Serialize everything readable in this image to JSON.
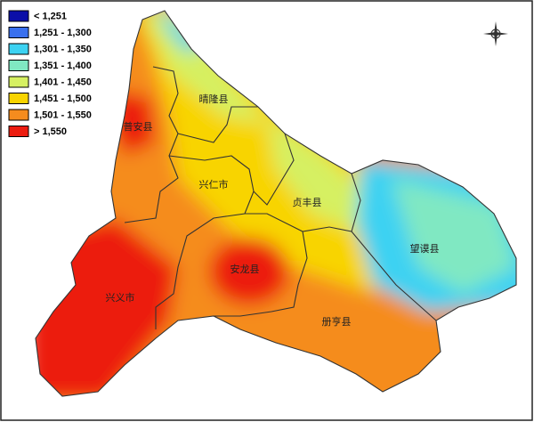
{
  "legend": {
    "items": [
      {
        "label": "< 1,251",
        "color": "#0b0fa8"
      },
      {
        "label": "1,251 - 1,300",
        "color": "#3a70ee"
      },
      {
        "label": "1,301 - 1,350",
        "color": "#3cd2f2"
      },
      {
        "label": "1,351 - 1,400",
        "color": "#80e8c2"
      },
      {
        "label": "1,401 - 1,450",
        "color": "#d6f062"
      },
      {
        "label": "1,451 - 1,500",
        "color": "#f8d400"
      },
      {
        "label": "1,501 - 1,550",
        "color": "#f58c1e"
      },
      {
        "label": "> 1,550",
        "color": "#ec1c10"
      }
    ]
  },
  "map": {
    "labels": [
      "晴隆县",
      "普安县",
      "兴仁市",
      "贞丰县",
      "望谟县",
      "安龙县",
      "兴义市",
      "册亨县"
    ]
  }
}
